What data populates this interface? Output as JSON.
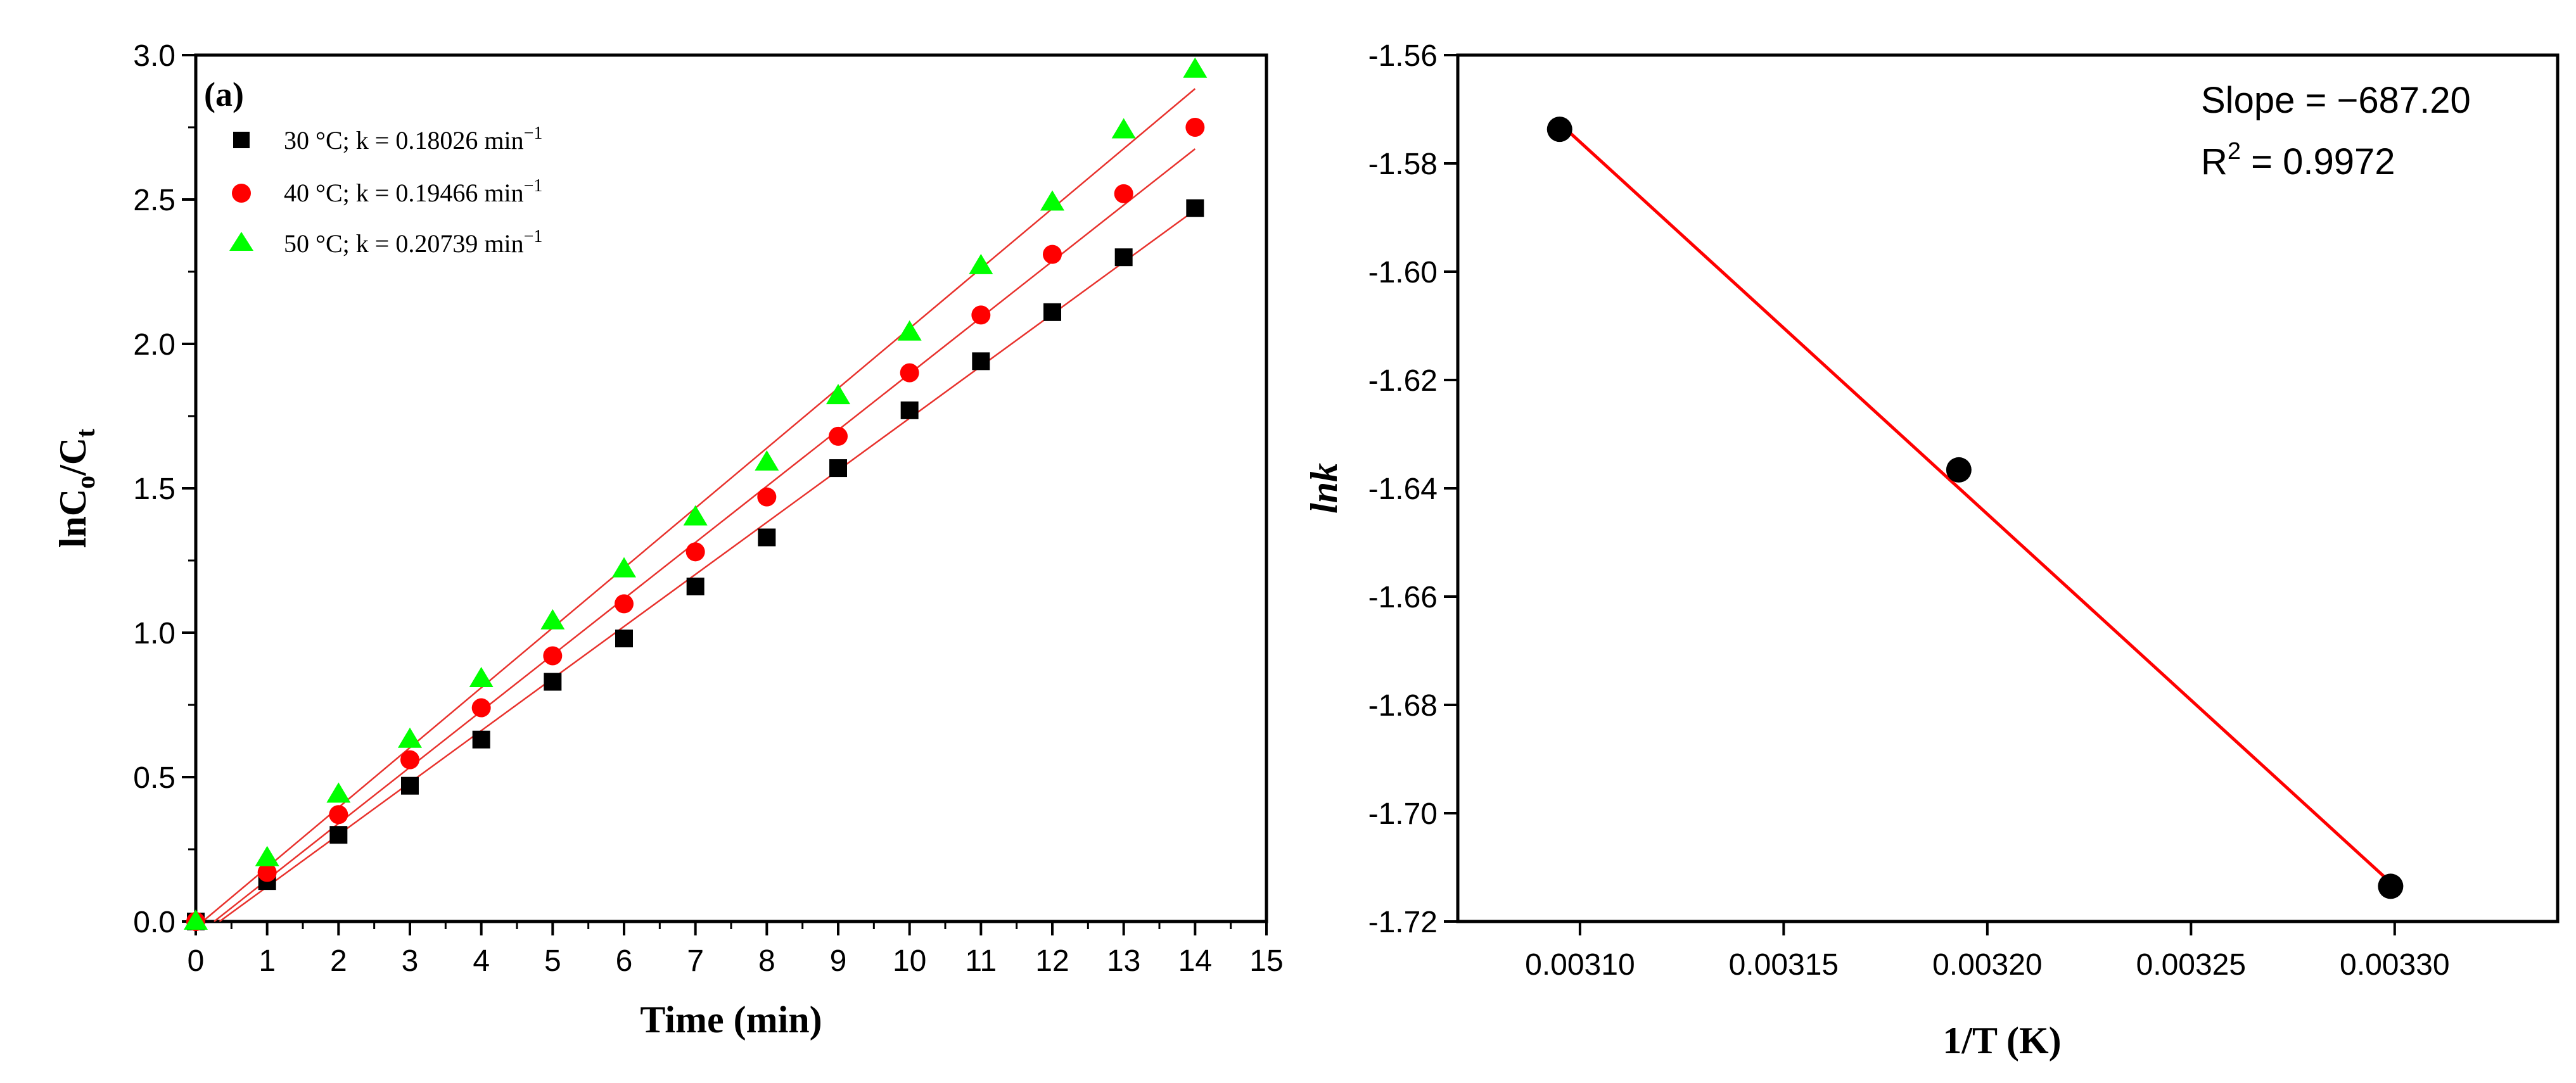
{
  "chart_data": [
    {
      "type": "scatter",
      "panel_label": "(a)",
      "xlabel": "Time (min)",
      "ylabel": "lnC",
      "ylabel_sub_o": "o",
      "ylabel_slash": "/C",
      "ylabel_sub_t": "t",
      "xlim": [
        0,
        15
      ],
      "ylim": [
        0,
        3.0
      ],
      "xticks": [
        0,
        1,
        2,
        3,
        4,
        5,
        6,
        7,
        8,
        9,
        10,
        11,
        12,
        13,
        14,
        15
      ],
      "yticks": [
        0.0,
        0.5,
        1.0,
        1.5,
        2.0,
        2.5,
        3.0
      ],
      "ytick_labels": [
        "0.0",
        "0.5",
        "1.0",
        "1.5",
        "2.0",
        "2.5",
        "3.0"
      ],
      "fit_color": "#e8322d",
      "series": [
        {
          "name": "30 °C; k = 0.18026 min",
          "legend_exp": "−1",
          "marker": "square",
          "color": "#000000",
          "x": [
            0,
            1,
            2,
            3,
            4,
            5,
            6,
            7,
            8,
            9,
            10,
            11,
            12,
            13,
            14
          ],
          "y": [
            0.0,
            0.14,
            0.3,
            0.47,
            0.63,
            0.83,
            0.98,
            1.16,
            1.33,
            1.57,
            1.77,
            1.94,
            2.11,
            2.3,
            2.47
          ],
          "fit": {
            "slope": 0.18026,
            "intercept": -0.06
          }
        },
        {
          "name": "40 °C; k = 0.19466 min",
          "legend_exp": "−1",
          "marker": "circle",
          "color": "#ff0000",
          "x": [
            0,
            1,
            2,
            3,
            4,
            5,
            6,
            7,
            8,
            9,
            10,
            11,
            12,
            13,
            14
          ],
          "y": [
            0.0,
            0.17,
            0.37,
            0.56,
            0.74,
            0.92,
            1.1,
            1.28,
            1.47,
            1.68,
            1.9,
            2.1,
            2.31,
            2.52,
            2.75
          ],
          "fit": {
            "slope": 0.19466,
            "intercept": -0.05
          }
        },
        {
          "name": "50 °C; k = 0.20739 min",
          "legend_exp": "−1",
          "marker": "triangle",
          "color": "#00ff00",
          "x": [
            0,
            1,
            2,
            3,
            4,
            5,
            6,
            7,
            8,
            9,
            10,
            11,
            12,
            13,
            14
          ],
          "y": [
            0.0,
            0.22,
            0.44,
            0.63,
            0.84,
            1.04,
            1.22,
            1.4,
            1.59,
            1.82,
            2.04,
            2.27,
            2.49,
            2.74,
            2.95
          ],
          "fit": {
            "slope": 0.20739,
            "intercept": -0.02
          }
        }
      ]
    },
    {
      "type": "scatter",
      "xlabel": "1/T (K)",
      "ylabel": "lnk",
      "xlim": [
        0.00307,
        0.00334
      ],
      "ylim": [
        -1.72,
        -1.56
      ],
      "xticks": [
        0.0031,
        0.00315,
        0.0032,
        0.00325,
        0.0033
      ],
      "xtick_labels": [
        "0.00310",
        "0.00315",
        "0.00320",
        "0.00325",
        "0.00330"
      ],
      "yticks": [
        -1.72,
        -1.7,
        -1.68,
        -1.66,
        -1.64,
        -1.62,
        -1.6,
        -1.58,
        -1.56
      ],
      "ytick_labels": [
        "-1.72",
        "-1.70",
        "-1.68",
        "-1.66",
        "-1.64",
        "-1.62",
        "-1.60",
        "-1.58",
        "-1.56"
      ],
      "points": {
        "color": "#000000",
        "x": [
          0.003095,
          0.003193,
          0.003299
        ],
        "y": [
          -1.5737,
          -1.6366,
          -1.7135
        ]
      },
      "fit": {
        "color": "#ff0000",
        "x": [
          0.003095,
          0.003299
        ],
        "y": [
          -1.5726,
          -1.7128
        ]
      },
      "annotation_slope": "Slope = −687.20",
      "annotation_r2_prefix": "R",
      "annotation_r2_exp": "2",
      "annotation_r2_suffix": " = 0.9972"
    }
  ]
}
